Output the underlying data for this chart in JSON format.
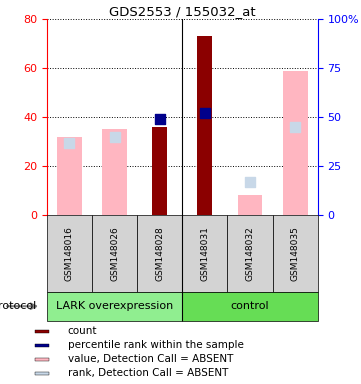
{
  "title": "GDS2553 / 155032_at",
  "samples": [
    "GSM148016",
    "GSM148026",
    "GSM148028",
    "GSM148031",
    "GSM148032",
    "GSM148035"
  ],
  "absent_value_bars": [
    32,
    35,
    null,
    null,
    8,
    59
  ],
  "absent_rank_dots_pct": [
    37,
    40,
    null,
    null,
    17,
    45
  ],
  "present_count_bars": [
    null,
    null,
    36,
    73,
    null,
    null
  ],
  "present_rank_dots_pct": [
    null,
    null,
    49,
    52,
    null,
    null
  ],
  "absent_value_color": "#FFB6C1",
  "absent_rank_color": "#C8D8E8",
  "present_count_color": "#8B0000",
  "present_rank_color": "#00008B",
  "ylim_left": [
    0,
    80
  ],
  "ylim_right": [
    0,
    100
  ],
  "yticks_left": [
    0,
    20,
    40,
    60,
    80
  ],
  "yticks_right": [
    0,
    25,
    50,
    75,
    100
  ],
  "ytick_labels_right": [
    "0",
    "25",
    "50",
    "75",
    "100%"
  ],
  "group_names": [
    "LARK overexpression",
    "control"
  ],
  "group_starts": [
    0,
    3
  ],
  "group_ends": [
    3,
    6
  ],
  "group_colors": [
    "#90EE90",
    "#66DD55"
  ],
  "legend_items": [
    {
      "label": "count",
      "color": "#8B0000"
    },
    {
      "label": "percentile rank within the sample",
      "color": "#00008B"
    },
    {
      "label": "value, Detection Call = ABSENT",
      "color": "#FFB6C1"
    },
    {
      "label": "rank, Detection Call = ABSENT",
      "color": "#C8D8E8"
    }
  ]
}
